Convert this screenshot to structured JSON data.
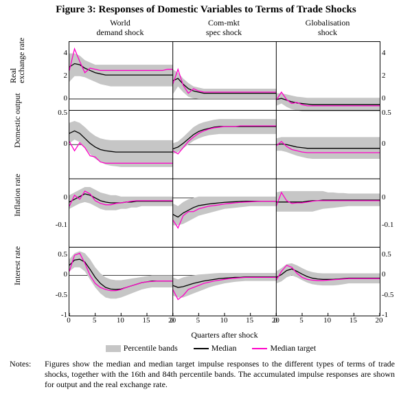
{
  "title": "Figure 3: Responses of Domestic Variables to Terms of Trade Shocks",
  "cols": [
    "World\ndemand shock",
    "Com-mkt\nspec shock",
    "Globalisation\nshock"
  ],
  "row_labels": [
    "Real\nexchange rate",
    "Domestic output",
    "Inflation rate",
    "Interest rate"
  ],
  "xaxis_title": "Quarters after shock",
  "xticks": [
    0,
    5,
    10,
    15,
    20
  ],
  "legend": {
    "band": "Percentile bands",
    "median": "Median",
    "target": "Median target"
  },
  "colors": {
    "band": "#c6c6c6",
    "median": "#000000",
    "target": "#ff00c8",
    "axis": "#000000",
    "bg": "#ffffff"
  },
  "rows": [
    {
      "ymin": -1.0,
      "ymax": 5.0,
      "yticks": [
        0,
        2,
        4
      ],
      "yticks_right": [
        0,
        2,
        4
      ]
    },
    {
      "ymin": -0.55,
      "ymax": 0.55,
      "yticks": [
        0.0,
        0.5
      ],
      "yticks_right": [
        0.0,
        0.5
      ]
    },
    {
      "ymin": -0.18,
      "ymax": 0.07,
      "yticks": [
        -0.1,
        0.0
      ],
      "yticks_right": [
        -0.1,
        0.0
      ]
    },
    {
      "ymin": -1.0,
      "ymax": 0.7,
      "yticks": [
        -1.0,
        -0.5,
        0.0,
        0.5
      ],
      "yticks_right": [
        -1.0,
        -0.5,
        0.0,
        0.5
      ]
    }
  ],
  "panels": [
    [
      {
        "hi": [
          4.0,
          4.0,
          3.8,
          3.4,
          3.2,
          3.0,
          3.0,
          3.0,
          3.0,
          3.0,
          3.0,
          3.0,
          3.0,
          3.0,
          3.0,
          3.0,
          3.0,
          3.0,
          3.0,
          3.0,
          3.0
        ],
        "lo": [
          1.5,
          2.0,
          2.0,
          1.9,
          1.7,
          1.5,
          1.3,
          1.2,
          1.1,
          1.1,
          1.1,
          1.1,
          1.1,
          1.1,
          1.1,
          1.1,
          1.1,
          1.1,
          1.1,
          1.1,
          1.1
        ],
        "med": [
          2.8,
          3.1,
          3.0,
          2.7,
          2.5,
          2.3,
          2.2,
          2.1,
          2.1,
          2.1,
          2.1,
          2.1,
          2.1,
          2.1,
          2.1,
          2.1,
          2.1,
          2.1,
          2.1,
          2.1,
          2.1
        ],
        "tgt": [
          2.5,
          4.4,
          3.3,
          2.3,
          2.7,
          2.6,
          2.5,
          2.5,
          2.5,
          2.5,
          2.5,
          2.5,
          2.5,
          2.5,
          2.5,
          2.5,
          2.5,
          2.5,
          2.5,
          2.6,
          2.6
        ]
      },
      {
        "hi": [
          2.6,
          2.3,
          1.8,
          1.4,
          1.1,
          1.0,
          0.9,
          0.9,
          0.9,
          0.9,
          0.9,
          0.9,
          0.9,
          0.9,
          0.9,
          0.9,
          0.9,
          0.9,
          0.9,
          0.9,
          0.9
        ],
        "lo": [
          0.4,
          1.1,
          0.6,
          0.2,
          0.05,
          0.0,
          0.0,
          0.0,
          0.0,
          0.0,
          0.0,
          0.0,
          0.0,
          0.0,
          0.0,
          0.0,
          0.0,
          0.0,
          0.0,
          0.0,
          0.0
        ],
        "med": [
          1.6,
          1.8,
          1.3,
          0.9,
          0.7,
          0.6,
          0.5,
          0.5,
          0.5,
          0.5,
          0.5,
          0.5,
          0.5,
          0.5,
          0.5,
          0.5,
          0.5,
          0.5,
          0.5,
          0.5,
          0.5
        ],
        "tgt": [
          1.3,
          2.6,
          1.2,
          0.5,
          0.9,
          0.7,
          0.6,
          0.6,
          0.6,
          0.6,
          0.6,
          0.6,
          0.6,
          0.6,
          0.6,
          0.6,
          0.6,
          0.6,
          0.6,
          0.6,
          0.6
        ]
      },
      {
        "hi": [
          0.5,
          0.5,
          0.4,
          0.3,
          0.2,
          0.15,
          0.1,
          0.1,
          0.1,
          0.1,
          0.1,
          0.1,
          0.1,
          0.1,
          0.1,
          0.1,
          0.1,
          0.1,
          0.1,
          0.1,
          0.1
        ],
        "lo": [
          -0.6,
          -0.4,
          -0.7,
          -0.9,
          -1.0,
          -1.1,
          -1.1,
          -1.1,
          -1.1,
          -1.1,
          -1.1,
          -1.1,
          -1.1,
          -1.1,
          -1.1,
          -1.1,
          -1.1,
          -1.1,
          -1.1,
          -1.1,
          -1.1
        ],
        "med": [
          -0.05,
          0.05,
          -0.1,
          -0.25,
          -0.35,
          -0.4,
          -0.45,
          -0.5,
          -0.5,
          -0.5,
          -0.5,
          -0.5,
          -0.5,
          -0.5,
          -0.5,
          -0.5,
          -0.5,
          -0.5,
          -0.5,
          -0.5,
          -0.5
        ],
        "tgt": [
          -0.1,
          0.6,
          -0.05,
          -0.4,
          -0.3,
          -0.5,
          -0.6,
          -0.6,
          -0.6,
          -0.6,
          -0.6,
          -0.6,
          -0.6,
          -0.6,
          -0.6,
          -0.6,
          -0.6,
          -0.6,
          -0.6,
          -0.6,
          -0.6
        ]
      }
    ],
    [
      {
        "hi": [
          0.35,
          0.38,
          0.35,
          0.28,
          0.2,
          0.14,
          0.1,
          0.08,
          0.07,
          0.07,
          0.07,
          0.07,
          0.07,
          0.07,
          0.07,
          0.07,
          0.07,
          0.07,
          0.07,
          0.07,
          0.07
        ],
        "lo": [
          0.02,
          0.08,
          0.04,
          -0.05,
          -0.15,
          -0.23,
          -0.28,
          -0.32,
          -0.34,
          -0.35,
          -0.36,
          -0.36,
          -0.36,
          -0.36,
          -0.36,
          -0.36,
          -0.36,
          -0.36,
          -0.36,
          -0.36,
          -0.36
        ],
        "med": [
          0.18,
          0.22,
          0.18,
          0.1,
          0.02,
          -0.04,
          -0.08,
          -0.1,
          -0.11,
          -0.12,
          -0.12,
          -0.12,
          -0.12,
          -0.12,
          -0.12,
          -0.12,
          -0.12,
          -0.12,
          -0.12,
          -0.12,
          -0.12
        ],
        "tgt": [
          0.05,
          -0.1,
          0.03,
          -0.05,
          -0.18,
          -0.2,
          -0.28,
          -0.3,
          -0.3,
          -0.3,
          -0.3,
          -0.3,
          -0.3,
          -0.3,
          -0.3,
          -0.3,
          -0.3,
          -0.3,
          -0.3,
          -0.3,
          -0.3
        ]
      },
      {
        "hi": [
          0.02,
          0.05,
          0.12,
          0.2,
          0.28,
          0.33,
          0.36,
          0.38,
          0.4,
          0.41,
          0.41,
          0.41,
          0.41,
          0.41,
          0.41,
          0.41,
          0.41,
          0.41,
          0.41,
          0.41,
          0.41
        ],
        "lo": [
          -0.15,
          -0.12,
          -0.06,
          0.0,
          0.06,
          0.1,
          0.13,
          0.15,
          0.16,
          0.17,
          0.17,
          0.17,
          0.17,
          0.17,
          0.17,
          0.17,
          0.17,
          0.17,
          0.17,
          0.17,
          0.17
        ],
        "med": [
          -0.07,
          -0.04,
          0.02,
          0.09,
          0.16,
          0.21,
          0.24,
          0.26,
          0.28,
          0.29,
          0.29,
          0.29,
          0.29,
          0.29,
          0.29,
          0.29,
          0.29,
          0.29,
          0.29,
          0.29,
          0.29
        ],
        "tgt": [
          -0.1,
          -0.15,
          -0.05,
          0.05,
          0.12,
          0.18,
          0.22,
          0.25,
          0.27,
          0.28,
          0.29,
          0.29,
          0.29,
          0.3,
          0.3,
          0.3,
          0.3,
          0.3,
          0.3,
          0.3,
          0.3
        ]
      },
      {
        "hi": [
          0.1,
          0.12,
          0.12,
          0.12,
          0.12,
          0.12,
          0.12,
          0.12,
          0.12,
          0.12,
          0.12,
          0.12,
          0.12,
          0.12,
          0.12,
          0.12,
          0.12,
          0.12,
          0.12,
          0.12,
          0.12
        ],
        "lo": [
          -0.1,
          -0.1,
          -0.12,
          -0.15,
          -0.18,
          -0.2,
          -0.22,
          -0.23,
          -0.23,
          -0.23,
          -0.23,
          -0.23,
          -0.23,
          -0.23,
          -0.23,
          -0.23,
          -0.23,
          -0.23,
          -0.23,
          -0.23,
          -0.23
        ],
        "med": [
          0.0,
          0.01,
          0.0,
          -0.02,
          -0.04,
          -0.05,
          -0.06,
          -0.06,
          -0.06,
          -0.06,
          -0.06,
          -0.06,
          -0.06,
          -0.06,
          -0.06,
          -0.06,
          -0.06,
          -0.06,
          -0.06,
          -0.06,
          -0.06
        ],
        "tgt": [
          -0.02,
          0.05,
          -0.03,
          -0.08,
          -0.1,
          -0.12,
          -0.13,
          -0.13,
          -0.13,
          -0.13,
          -0.13,
          -0.13,
          -0.13,
          -0.13,
          -0.13,
          -0.13,
          -0.13,
          -0.13,
          -0.13,
          -0.13,
          -0.13
        ]
      }
    ],
    [
      {
        "hi": [
          0.01,
          0.02,
          0.03,
          0.04,
          0.04,
          0.03,
          0.02,
          0.015,
          0.01,
          0.01,
          0.005,
          0.005,
          0.005,
          0.005,
          0.005,
          0.005,
          0.005,
          0.005,
          0.005,
          0.005,
          0.005
        ],
        "lo": [
          -0.04,
          -0.03,
          -0.02,
          -0.015,
          -0.02,
          -0.03,
          -0.04,
          -0.045,
          -0.045,
          -0.045,
          -0.04,
          -0.04,
          -0.035,
          -0.035,
          -0.03,
          -0.03,
          -0.03,
          -0.03,
          -0.03,
          -0.03,
          -0.03
        ],
        "med": [
          -0.015,
          -0.005,
          0.005,
          0.015,
          0.01,
          0.0,
          -0.01,
          -0.015,
          -0.018,
          -0.018,
          -0.018,
          -0.015,
          -0.015,
          -0.012,
          -0.012,
          -0.012,
          -0.012,
          -0.012,
          -0.012,
          -0.012,
          -0.012
        ],
        "tgt": [
          -0.03,
          0.01,
          -0.005,
          0.025,
          0.015,
          -0.01,
          -0.02,
          -0.025,
          -0.025,
          -0.02,
          -0.018,
          -0.015,
          -0.012,
          -0.01,
          -0.01,
          -0.01,
          -0.01,
          -0.01,
          -0.01,
          -0.01,
          -0.01
        ]
      },
      {
        "hi": [
          -0.02,
          -0.03,
          -0.015,
          -0.005,
          0.0,
          0.005,
          0.005,
          0.005,
          0.005,
          0.005,
          0.005,
          0.005,
          0.005,
          0.005,
          0.005,
          0.005,
          0.005,
          0.005,
          0.005,
          0.005,
          0.005
        ],
        "lo": [
          -0.1,
          -0.1,
          -0.095,
          -0.085,
          -0.075,
          -0.065,
          -0.06,
          -0.055,
          -0.05,
          -0.045,
          -0.04,
          -0.038,
          -0.036,
          -0.034,
          -0.032,
          -0.03,
          -0.03,
          -0.03,
          -0.03,
          -0.03,
          -0.03
        ],
        "med": [
          -0.06,
          -0.07,
          -0.055,
          -0.045,
          -0.035,
          -0.028,
          -0.025,
          -0.022,
          -0.02,
          -0.018,
          -0.016,
          -0.015,
          -0.014,
          -0.013,
          -0.012,
          -0.012,
          -0.012,
          -0.012,
          -0.012,
          -0.012,
          -0.012
        ],
        "tgt": [
          -0.08,
          -0.11,
          -0.065,
          -0.05,
          -0.05,
          -0.04,
          -0.035,
          -0.03,
          -0.028,
          -0.025,
          -0.022,
          -0.02,
          -0.018,
          -0.016,
          -0.015,
          -0.014,
          -0.013,
          -0.012,
          -0.012,
          -0.012,
          -0.012
        ]
      },
      {
        "hi": [
          0.02,
          0.025,
          0.025,
          0.025,
          0.025,
          0.025,
          0.025,
          0.025,
          0.025,
          0.025,
          0.02,
          0.02,
          0.018,
          0.018,
          0.016,
          0.016,
          0.016,
          0.016,
          0.016,
          0.016,
          0.016
        ],
        "lo": [
          -0.05,
          -0.05,
          -0.05,
          -0.05,
          -0.05,
          -0.05,
          -0.05,
          -0.05,
          -0.045,
          -0.04,
          -0.038,
          -0.036,
          -0.034,
          -0.032,
          -0.03,
          -0.03,
          -0.03,
          -0.03,
          -0.03,
          -0.03,
          -0.03
        ],
        "med": [
          -0.015,
          -0.015,
          -0.015,
          -0.015,
          -0.015,
          -0.015,
          -0.012,
          -0.01,
          -0.01,
          -0.008,
          -0.008,
          -0.008,
          -0.008,
          -0.008,
          -0.008,
          -0.008,
          -0.008,
          -0.008,
          -0.008,
          -0.008,
          -0.008
        ],
        "tgt": [
          -0.03,
          0.02,
          -0.01,
          -0.02,
          -0.018,
          -0.018,
          -0.015,
          -0.012,
          -0.01,
          -0.01,
          -0.01,
          -0.01,
          -0.01,
          -0.01,
          -0.01,
          -0.01,
          -0.01,
          -0.01,
          -0.01,
          -0.01,
          -0.01
        ]
      }
    ],
    [
      {
        "hi": [
          0.4,
          0.55,
          0.6,
          0.55,
          0.4,
          0.2,
          0.05,
          -0.05,
          -0.1,
          -0.12,
          -0.12,
          -0.1,
          -0.08,
          -0.06,
          -0.04,
          -0.02,
          0.0,
          0.0,
          0.0,
          0.0,
          0.0
        ],
        "lo": [
          0.1,
          0.2,
          0.2,
          0.1,
          -0.1,
          -0.3,
          -0.45,
          -0.55,
          -0.58,
          -0.58,
          -0.55,
          -0.5,
          -0.45,
          -0.4,
          -0.35,
          -0.32,
          -0.3,
          -0.3,
          -0.3,
          -0.3,
          -0.3
        ],
        "med": [
          0.25,
          0.38,
          0.4,
          0.33,
          0.15,
          -0.05,
          -0.2,
          -0.3,
          -0.34,
          -0.35,
          -0.34,
          -0.3,
          -0.26,
          -0.22,
          -0.18,
          -0.16,
          -0.14,
          -0.14,
          -0.14,
          -0.14,
          -0.14
        ],
        "tgt": [
          0.1,
          0.5,
          0.55,
          0.3,
          0.0,
          -0.2,
          -0.3,
          -0.35,
          -0.38,
          -0.38,
          -0.35,
          -0.3,
          -0.26,
          -0.22,
          -0.18,
          -0.16,
          -0.15,
          -0.14,
          -0.14,
          -0.14,
          -0.14
        ]
      },
      {
        "hi": [
          -0.05,
          -0.1,
          -0.05,
          -0.02,
          0.0,
          0.02,
          0.03,
          0.04,
          0.05,
          0.06,
          0.06,
          0.06,
          0.06,
          0.06,
          0.06,
          0.06,
          0.06,
          0.06,
          0.06,
          0.06,
          0.06
        ],
        "lo": [
          -0.5,
          -0.55,
          -0.55,
          -0.5,
          -0.45,
          -0.4,
          -0.35,
          -0.3,
          -0.26,
          -0.23,
          -0.2,
          -0.18,
          -0.16,
          -0.15,
          -0.14,
          -0.14,
          -0.14,
          -0.14,
          -0.14,
          -0.14,
          -0.14
        ],
        "med": [
          -0.25,
          -0.3,
          -0.28,
          -0.24,
          -0.2,
          -0.17,
          -0.14,
          -0.12,
          -0.1,
          -0.08,
          -0.07,
          -0.06,
          -0.05,
          -0.05,
          -0.04,
          -0.04,
          -0.04,
          -0.04,
          -0.04,
          -0.04,
          -0.04
        ],
        "tgt": [
          -0.35,
          -0.6,
          -0.5,
          -0.35,
          -0.3,
          -0.25,
          -0.2,
          -0.17,
          -0.14,
          -0.12,
          -0.1,
          -0.08,
          -0.07,
          -0.06,
          -0.05,
          -0.05,
          -0.05,
          -0.05,
          -0.05,
          -0.05,
          -0.05
        ]
      },
      {
        "hi": [
          0.1,
          0.18,
          0.28,
          0.3,
          0.25,
          0.18,
          0.12,
          0.08,
          0.06,
          0.05,
          0.05,
          0.05,
          0.05,
          0.05,
          0.05,
          0.05,
          0.05,
          0.05,
          0.05,
          0.05,
          0.05
        ],
        "lo": [
          -0.2,
          -0.15,
          -0.05,
          0.0,
          -0.05,
          -0.12,
          -0.18,
          -0.22,
          -0.24,
          -0.25,
          -0.25,
          -0.25,
          -0.24,
          -0.22,
          -0.2,
          -0.2,
          -0.2,
          -0.2,
          -0.2,
          -0.2,
          -0.2
        ],
        "med": [
          -0.05,
          0.02,
          0.12,
          0.16,
          0.1,
          0.03,
          -0.03,
          -0.07,
          -0.09,
          -0.1,
          -0.1,
          -0.1,
          -0.09,
          -0.08,
          -0.07,
          -0.07,
          -0.07,
          -0.07,
          -0.07,
          -0.07,
          -0.07
        ],
        "tgt": [
          -0.12,
          0.1,
          0.25,
          0.2,
          0.05,
          -0.05,
          -0.1,
          -0.12,
          -0.13,
          -0.13,
          -0.12,
          -0.11,
          -0.1,
          -0.09,
          -0.08,
          -0.08,
          -0.08,
          -0.08,
          -0.08,
          -0.08,
          -0.08
        ]
      }
    ]
  ],
  "notes_label": "Notes:",
  "notes": "Figures show the median and median target impulse responses to the different types of terms of trade shocks, together with the 16th and 84th percentile bands. The accumulated impulse responses are shown for output and the real exchange rate."
}
